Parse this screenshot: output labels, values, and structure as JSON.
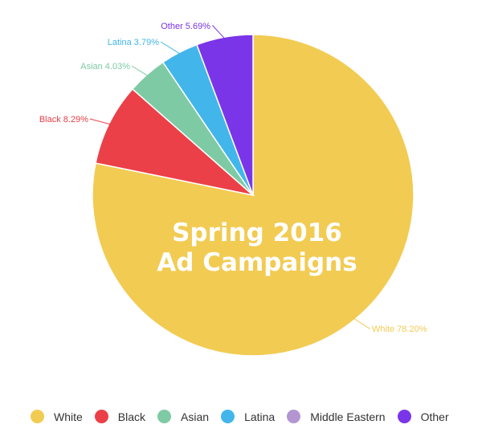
{
  "chart_data": {
    "type": "pie",
    "title": "Spring 2016 Ad Campaigns",
    "title_lines": [
      "Spring 2016",
      "Ad Campaigns"
    ],
    "slices": [
      {
        "name": "White",
        "value": 78.2,
        "label": "White 78.20%",
        "color": "#F2CB53"
      },
      {
        "name": "Black",
        "value": 8.29,
        "label": "Black 8.29%",
        "color": "#EB4048"
      },
      {
        "name": "Asian",
        "value": 4.03,
        "label": "Asian 4.03%",
        "color": "#7ECAA4"
      },
      {
        "name": "Latina",
        "value": 3.79,
        "label": "Latina 3.79%",
        "color": "#42B6EB"
      },
      {
        "name": "Middle Eastern",
        "value": 0,
        "label": "",
        "color": "#B395D1"
      },
      {
        "name": "Other",
        "value": 5.69,
        "label": "Other 5.69%",
        "color": "#7B35E8"
      }
    ],
    "legend": {
      "placement": "bottom",
      "items": [
        {
          "label": "White",
          "color": "#F2CB53"
        },
        {
          "label": "Black",
          "color": "#EB4048"
        },
        {
          "label": "Asian",
          "color": "#7ECAA4"
        },
        {
          "label": "Latina",
          "color": "#42B6EB"
        },
        {
          "label": "Middle Eastern",
          "color": "#B395D1"
        },
        {
          "label": "Other",
          "color": "#7B35E8"
        }
      ]
    }
  }
}
